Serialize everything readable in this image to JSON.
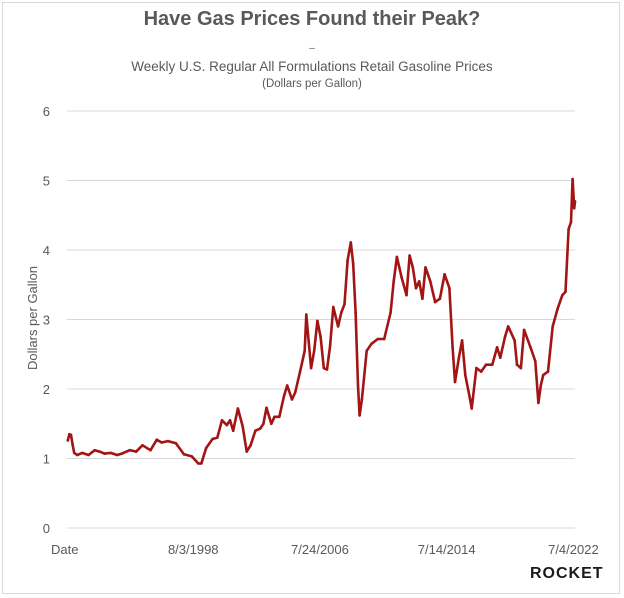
{
  "title": "Have Gas Prices Found their Peak?",
  "title_dash": "–",
  "subtitle": "Weekly U.S. Regular All Formulations Retail Gasoline Prices",
  "subtitle_units": "(Dollars per Gallon)",
  "logo": "ROCKET",
  "colors": {
    "line": "#a31515",
    "grid": "#d9d9d9",
    "text": "#595959"
  },
  "chart_data": {
    "type": "line",
    "title": "Have Gas Prices Found their Peak?",
    "xlabel": "Date",
    "ylabel": "Dollars per Gallon",
    "xlim": [
      1990.65,
      2022.6
    ],
    "ylim": [
      0,
      6
    ],
    "grid": true,
    "legend": "none",
    "x_tick_labels": [
      {
        "label": "Date",
        "x": 1990.65
      },
      {
        "label": "8/3/1998",
        "x": 1998.59
      },
      {
        "label": "7/24/2006",
        "x": 2006.56
      },
      {
        "label": "7/14/2014",
        "x": 2014.53
      },
      {
        "label": "7/4/2022",
        "x": 2022.5
      }
    ],
    "y_ticks": [
      0,
      1,
      2,
      3,
      4,
      5,
      6
    ],
    "series": [
      {
        "x": [
          1990.7,
          1990.8,
          1990.9,
          1991.0,
          1991.1,
          1991.3,
          1991.6,
          1992.0,
          1992.4,
          1992.7,
          1993.0,
          1993.4,
          1993.8,
          1994.1,
          1994.6,
          1995.0,
          1995.4,
          1995.9,
          1996.3,
          1996.6,
          1997.0,
          1997.5,
          1998.0,
          1998.5,
          1998.9,
          1999.1,
          1999.4,
          1999.8,
          2000.1,
          2000.4,
          2000.7,
          2000.9,
          2001.1,
          2001.4,
          2001.7,
          2001.95,
          2002.2,
          2002.5,
          2002.8,
          2003.0,
          2003.2,
          2003.5,
          2003.7,
          2004.0,
          2004.3,
          2004.5,
          2004.8,
          2005.0,
          2005.3,
          2005.6,
          2005.7,
          2005.85,
          2006.0,
          2006.2,
          2006.4,
          2006.6,
          2006.8,
          2007.0,
          2007.2,
          2007.4,
          2007.7,
          2007.9,
          2008.1,
          2008.3,
          2008.5,
          2008.65,
          2008.8,
          2008.95,
          2009.05,
          2009.2,
          2009.5,
          2009.8,
          2010.2,
          2010.6,
          2011.0,
          2011.2,
          2011.4,
          2011.7,
          2012.0,
          2012.2,
          2012.4,
          2012.6,
          2012.8,
          2013.0,
          2013.2,
          2013.5,
          2013.8,
          2014.1,
          2014.4,
          2014.7,
          2014.9,
          2015.05,
          2015.3,
          2015.5,
          2015.7,
          2016.0,
          2016.1,
          2016.4,
          2016.7,
          2017.0,
          2017.4,
          2017.7,
          2017.9,
          2018.2,
          2018.4,
          2018.8,
          2018.95,
          2019.2,
          2019.4,
          2019.8,
          2020.1,
          2020.3,
          2020.45,
          2020.6,
          2020.9,
          2021.2,
          2021.5,
          2021.8,
          2022.0,
          2022.2,
          2022.35,
          2022.45,
          2022.55,
          2022.6
        ],
        "y": [
          1.26,
          1.35,
          1.34,
          1.2,
          1.08,
          1.05,
          1.08,
          1.05,
          1.12,
          1.1,
          1.07,
          1.08,
          1.05,
          1.07,
          1.12,
          1.1,
          1.19,
          1.12,
          1.27,
          1.23,
          1.25,
          1.22,
          1.06,
          1.03,
          0.93,
          0.93,
          1.15,
          1.28,
          1.3,
          1.55,
          1.48,
          1.55,
          1.4,
          1.72,
          1.46,
          1.1,
          1.19,
          1.4,
          1.43,
          1.5,
          1.73,
          1.5,
          1.6,
          1.6,
          1.9,
          2.05,
          1.85,
          1.95,
          2.24,
          2.55,
          3.07,
          2.68,
          2.3,
          2.55,
          2.98,
          2.75,
          2.3,
          2.28,
          2.62,
          3.18,
          2.9,
          3.1,
          3.22,
          3.85,
          4.11,
          3.8,
          3.1,
          2.05,
          1.62,
          1.85,
          2.55,
          2.65,
          2.72,
          2.72,
          3.1,
          3.55,
          3.9,
          3.6,
          3.35,
          3.92,
          3.75,
          3.45,
          3.55,
          3.3,
          3.75,
          3.55,
          3.25,
          3.3,
          3.65,
          3.45,
          2.6,
          2.1,
          2.45,
          2.7,
          2.2,
          1.85,
          1.72,
          2.3,
          2.25,
          2.35,
          2.35,
          2.6,
          2.45,
          2.75,
          2.9,
          2.7,
          2.35,
          2.3,
          2.85,
          2.6,
          2.4,
          1.8,
          2.05,
          2.2,
          2.25,
          2.9,
          3.15,
          3.35,
          3.4,
          4.3,
          4.4,
          5.02,
          4.6,
          4.7
        ]
      }
    ]
  }
}
